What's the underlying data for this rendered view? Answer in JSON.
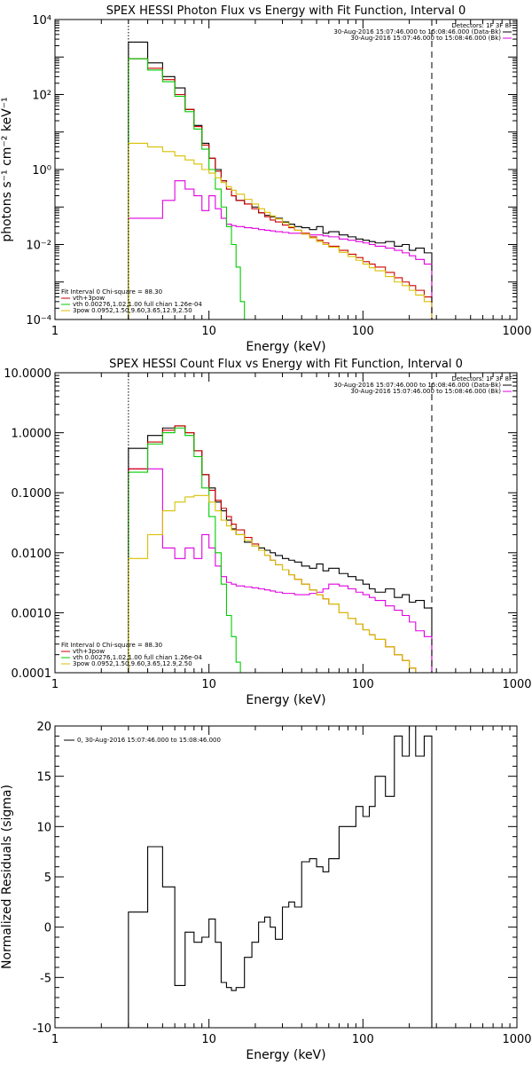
{
  "chart_data": [
    {
      "type": "line",
      "title": "SPEX HESSI Photon Flux vs Energy with Fit Function, Interval 0",
      "xlabel": "Energy (keV)",
      "ylabel": "photons s⁻¹ cm⁻² keV⁻¹",
      "xscale": "log",
      "yscale": "log",
      "xlim": [
        1,
        1000
      ],
      "ylim": [
        0.0001,
        10000
      ],
      "x_tick_labels": [
        "1",
        "10",
        "100",
        "1000"
      ],
      "y_tick_labels": [
        "10⁻⁴",
        "10⁻²",
        "10⁰",
        "10²",
        "10⁴"
      ],
      "legend_top": [
        "Detectors: 1F 3F 8F",
        "30-Aug-2016 15:07:46.000 to 15:08:46.000 (Data-Bk)",
        "30-Aug-2016 15:07:46.000 to 15:08:46.000 (Bk)"
      ],
      "legend_bottom": [
        "Fit Interval 0   Chi-square = 88.30",
        "vth+3pow",
        "vth 0.00276,1.02,1.00  full chian 1.26e-04",
        "3pow 0.0952,1.50,9.60,3.65,12.9,2.50"
      ],
      "vlines": [
        {
          "x": 3,
          "style": "dotted"
        },
        {
          "x": 280,
          "style": "dashed"
        }
      ],
      "grid": false,
      "series": [
        {
          "name": "Data-Bk",
          "color": "#000000",
          "step": true,
          "x": [
            3,
            4,
            5,
            6,
            7,
            8,
            9,
            10,
            11,
            12,
            13,
            14,
            15,
            17,
            19,
            21,
            23,
            25,
            27,
            30,
            33,
            36,
            40,
            45,
            50,
            55,
            60,
            70,
            80,
            90,
            100,
            110,
            120,
            140,
            160,
            180,
            200,
            220,
            250,
            280
          ],
          "y": [
            2500,
            700,
            300,
            150,
            40,
            15,
            5,
            2,
            1,
            0.5,
            0.3,
            0.2,
            0.15,
            0.12,
            0.1,
            0.07,
            0.06,
            0.055,
            0.05,
            0.04,
            0.035,
            0.03,
            0.028,
            0.025,
            0.03,
            0.02,
            0.022,
            0.018,
            0.016,
            0.014,
            0.013,
            0.012,
            0.011,
            0.012,
            0.009,
            0.01,
            0.007,
            0.008,
            0.006,
            0.006
          ]
        },
        {
          "name": "Bk",
          "color": "#e000e0",
          "step": true,
          "x": [
            3,
            4,
            5,
            6,
            7,
            8,
            9,
            10,
            11,
            12,
            13,
            14,
            15,
            17,
            19,
            21,
            23,
            25,
            27,
            30,
            33,
            36,
            40,
            45,
            50,
            55,
            60,
            70,
            80,
            90,
            100,
            110,
            120,
            140,
            160,
            180,
            200,
            220,
            250,
            280
          ],
          "y": [
            0.05,
            0.05,
            0.15,
            0.5,
            0.3,
            0.2,
            0.08,
            0.2,
            0.09,
            0.05,
            0.035,
            0.032,
            0.03,
            0.028,
            0.027,
            0.025,
            0.024,
            0.023,
            0.022,
            0.021,
            0.02,
            0.02,
            0.019,
            0.018,
            0.018,
            0.017,
            0.016,
            0.014,
            0.013,
            0.012,
            0.011,
            0.01,
            0.009,
            0.008,
            0.007,
            0.006,
            0.005,
            0.004,
            0.003,
            0.0015
          ]
        },
        {
          "name": "vth+3pow",
          "color": "#cc0000",
          "step": true,
          "x": [
            3,
            4,
            5,
            6,
            7,
            8,
            9,
            10,
            11,
            12,
            13,
            14,
            15,
            17,
            19,
            21,
            23,
            25,
            27,
            30,
            33,
            36,
            40,
            45,
            50,
            55,
            60,
            70,
            80,
            90,
            100,
            110,
            120,
            140,
            160,
            180,
            200,
            220,
            250,
            280
          ],
          "y": [
            900,
            500,
            250,
            100,
            40,
            14,
            4.5,
            2,
            0.9,
            0.5,
            0.3,
            0.2,
            0.15,
            0.12,
            0.09,
            0.07,
            0.055,
            0.045,
            0.04,
            0.033,
            0.028,
            0.024,
            0.02,
            0.016,
            0.013,
            0.011,
            0.009,
            0.007,
            0.0055,
            0.0045,
            0.0035,
            0.003,
            0.0025,
            0.0018,
            0.0013,
            0.001,
            0.0008,
            0.0006,
            0.0004,
            0.0002
          ]
        },
        {
          "name": "vth",
          "color": "#00cc00",
          "step": true,
          "x": [
            3,
            4,
            5,
            6,
            7,
            8,
            9,
            10,
            11,
            12,
            13,
            14,
            15,
            16,
            17
          ],
          "y": [
            900,
            450,
            220,
            90,
            35,
            12,
            3.5,
            1,
            0.3,
            0.1,
            0.03,
            0.01,
            0.0025,
            0.0003,
            0.0001
          ]
        },
        {
          "name": "3pow",
          "color": "#d8c000",
          "step": true,
          "x": [
            3,
            4,
            5,
            6,
            7,
            8,
            9,
            10,
            11,
            12,
            13,
            14,
            15,
            17,
            19,
            21,
            23,
            25,
            27,
            30,
            33,
            36,
            40,
            45,
            50,
            55,
            60,
            70,
            80,
            90,
            100,
            110,
            120,
            140,
            160,
            180,
            200,
            220,
            250,
            280
          ],
          "y": [
            5,
            4,
            3,
            2.3,
            1.8,
            1.4,
            1,
            0.8,
            0.6,
            0.45,
            0.35,
            0.28,
            0.22,
            0.16,
            0.12,
            0.09,
            0.072,
            0.058,
            0.048,
            0.038,
            0.03,
            0.024,
            0.019,
            0.015,
            0.012,
            0.01,
            0.0085,
            0.0062,
            0.0048,
            0.0038,
            0.003,
            0.0024,
            0.002,
            0.0014,
            0.001,
            0.0008,
            0.0006,
            0.00045,
            0.0003,
            0.0002
          ]
        }
      ]
    },
    {
      "type": "line",
      "title": "SPEX HESSI Count Flux vs Energy with Fit Function, Interval 0",
      "xlabel": "Energy (keV)",
      "ylabel": "",
      "xscale": "log",
      "yscale": "log",
      "xlim": [
        1,
        1000
      ],
      "ylim": [
        0.0001,
        10
      ],
      "x_tick_labels": [
        "1",
        "10",
        "100",
        "1000"
      ],
      "y_tick_labels": [
        "0.0001",
        "0.0010",
        "0.0100",
        "0.1000",
        "1.0000",
        "10.0000"
      ],
      "legend_top": [
        "Detectors: 1F 3F 8F",
        "30-Aug-2016 15:07:46.000 to 15:08:46.000 (Data-Bk)",
        "30-Aug-2016 15:07:46.000 to 15:08:46.000 (Bk)"
      ],
      "legend_bottom": [
        "Fit Interval 0   Chi-square = 88.30",
        "vth+3pow",
        "vth 0.00276,1.02,1.00  full chian 1.26e-04",
        "3pow 0.0952,1.50,9.60,3.65,12.9,2.50"
      ],
      "vlines": [
        {
          "x": 3,
          "style": "dotted"
        },
        {
          "x": 280,
          "style": "dashed"
        }
      ],
      "grid": false,
      "series": [
        {
          "name": "Data-Bk",
          "color": "#000000",
          "step": true,
          "x": [
            3,
            4,
            5,
            6,
            7,
            8,
            9,
            10,
            11,
            12,
            13,
            14,
            15,
            17,
            19,
            21,
            23,
            25,
            27,
            30,
            33,
            36,
            40,
            45,
            50,
            55,
            60,
            70,
            80,
            90,
            100,
            110,
            120,
            140,
            160,
            180,
            200,
            220,
            250,
            280
          ],
          "y": [
            0.55,
            0.9,
            1.2,
            1.3,
            1.0,
            0.5,
            0.2,
            0.12,
            0.07,
            0.05,
            0.035,
            0.025,
            0.02,
            0.015,
            0.013,
            0.012,
            0.011,
            0.01,
            0.009,
            0.008,
            0.0075,
            0.007,
            0.006,
            0.0055,
            0.0065,
            0.005,
            0.0055,
            0.0045,
            0.004,
            0.0035,
            0.003,
            0.0025,
            0.0022,
            0.0025,
            0.0018,
            0.002,
            0.0015,
            0.0016,
            0.0012,
            0.0012
          ]
        },
        {
          "name": "Bk",
          "color": "#e000e0",
          "step": true,
          "x": [
            3,
            4,
            5,
            6,
            7,
            8,
            9,
            10,
            11,
            12,
            13,
            14,
            15,
            17,
            19,
            21,
            23,
            25,
            27,
            30,
            33,
            36,
            40,
            45,
            50,
            55,
            60,
            70,
            80,
            90,
            100,
            110,
            120,
            140,
            160,
            180,
            200,
            220,
            250,
            280
          ],
          "y": [
            0.25,
            0.25,
            0.012,
            0.008,
            0.012,
            0.008,
            0.02,
            0.012,
            0.006,
            0.004,
            0.0032,
            0.003,
            0.0028,
            0.0027,
            0.0026,
            0.0025,
            0.0024,
            0.0023,
            0.0022,
            0.0021,
            0.0021,
            0.002,
            0.002,
            0.0021,
            0.0022,
            0.0025,
            0.003,
            0.0028,
            0.0025,
            0.0022,
            0.002,
            0.0018,
            0.0016,
            0.0013,
            0.0011,
            0.0009,
            0.0007,
            0.0005,
            0.0004,
            0.0002
          ]
        },
        {
          "name": "vth+3pow",
          "color": "#cc0000",
          "step": true,
          "x": [
            3,
            4,
            5,
            6,
            7,
            8,
            9,
            10,
            11,
            12,
            13,
            14,
            15,
            17,
            19,
            21,
            23,
            25,
            27,
            30,
            33,
            36,
            40,
            45,
            50,
            55,
            60,
            70,
            80,
            90,
            100,
            110,
            120,
            140,
            160,
            180,
            200,
            220,
            250,
            280
          ],
          "y": [
            0.25,
            0.7,
            1.1,
            1.3,
            1.0,
            0.5,
            0.2,
            0.11,
            0.075,
            0.055,
            0.04,
            0.03,
            0.024,
            0.018,
            0.014,
            0.011,
            0.009,
            0.0075,
            0.0063,
            0.0052,
            0.0043,
            0.0036,
            0.003,
            0.0024,
            0.002,
            0.0017,
            0.0014,
            0.001,
            0.0008,
            0.00065,
            0.00052,
            0.00043,
            0.00036,
            0.00027,
            0.0002,
            0.00016,
            0.00012,
            0.0001,
            0.0001,
            0.0001
          ]
        },
        {
          "name": "vth",
          "color": "#00cc00",
          "step": true,
          "x": [
            3,
            4,
            5,
            6,
            7,
            8,
            9,
            10,
            11,
            12,
            13,
            14,
            15,
            16
          ],
          "y": [
            0.22,
            0.65,
            1.0,
            1.2,
            0.9,
            0.4,
            0.12,
            0.04,
            0.01,
            0.003,
            0.0009,
            0.0004,
            0.00015,
            0.0001
          ]
        },
        {
          "name": "3pow",
          "color": "#d8c000",
          "step": true,
          "x": [
            3,
            4,
            5,
            6,
            7,
            8,
            9,
            10,
            11,
            12,
            13,
            14,
            15,
            17,
            19,
            21,
            23,
            25,
            27,
            30,
            33,
            36,
            40,
            45,
            50,
            55,
            60,
            70,
            80,
            90,
            100,
            110,
            120,
            140,
            160,
            180,
            200,
            220,
            250,
            280
          ],
          "y": [
            0.008,
            0.02,
            0.05,
            0.07,
            0.085,
            0.09,
            0.09,
            0.07,
            0.05,
            0.035,
            0.028,
            0.024,
            0.02,
            0.016,
            0.013,
            0.011,
            0.009,
            0.0075,
            0.0063,
            0.0052,
            0.0043,
            0.0036,
            0.003,
            0.0024,
            0.002,
            0.0017,
            0.0014,
            0.001,
            0.0008,
            0.00065,
            0.00052,
            0.00043,
            0.00036,
            0.00027,
            0.0002,
            0.00016,
            0.00012,
            0.0001,
            0.0001,
            0.0001
          ]
        }
      ]
    },
    {
      "type": "line",
      "title": "",
      "xlabel": "Energy (keV)",
      "ylabel": "Normalized Residuals (sigma)",
      "xscale": "log",
      "yscale": "linear",
      "xlim": [
        1,
        1000
      ],
      "ylim": [
        -10,
        20
      ],
      "x_tick_labels": [
        "1",
        "10",
        "100",
        "1000"
      ],
      "y_tick_labels": [
        "-10",
        "-5",
        "0",
        "5",
        "10",
        "15",
        "20"
      ],
      "legend": [
        "0, 30-Aug-2016 15:07:46.000 to 15:08:46.000"
      ],
      "grid": false,
      "series": [
        {
          "name": "0, 30-Aug-2016 15:07:46.000 to 15:08:46.000",
          "color": "#000000",
          "step": true,
          "x": [
            3,
            4,
            5,
            6,
            7,
            8,
            9,
            10,
            11,
            12,
            13,
            14,
            15,
            17,
            19,
            21,
            23,
            25,
            27,
            30,
            33,
            36,
            40,
            45,
            50,
            55,
            60,
            70,
            80,
            90,
            100,
            110,
            120,
            140,
            160,
            180,
            200,
            220,
            250,
            280
          ],
          "y": [
            1.5,
            8.0,
            4.0,
            -5.8,
            -0.5,
            -1.5,
            -1.0,
            0.8,
            -1.5,
            -5.5,
            -6.0,
            -6.3,
            -6.0,
            -3.0,
            -1.5,
            0.5,
            1.0,
            0.0,
            -1.2,
            2.0,
            2.5,
            2.0,
            6.5,
            6.8,
            6.0,
            5.5,
            6.8,
            10.0,
            10.0,
            12.0,
            11.0,
            12.0,
            15.0,
            13.0,
            19.0,
            17.0,
            20.0,
            17.0,
            19.0,
            19.0
          ]
        }
      ]
    }
  ]
}
